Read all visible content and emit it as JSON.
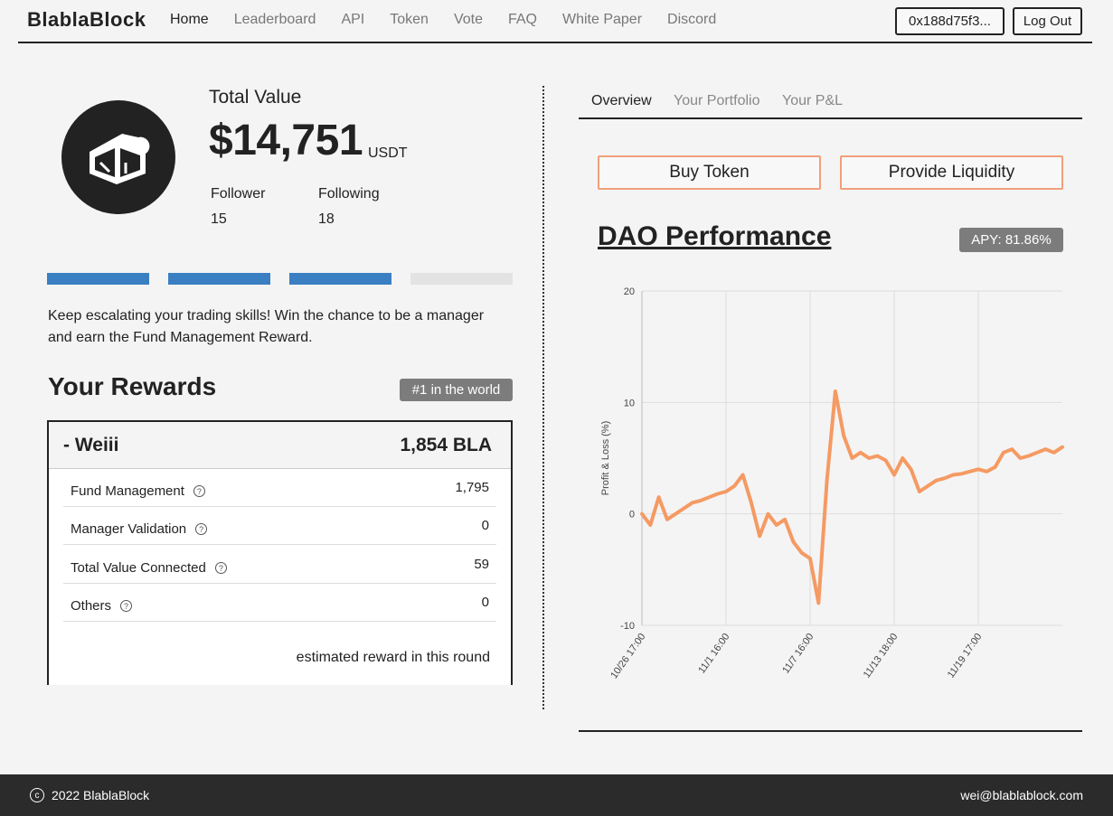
{
  "header": {
    "logo": "BlablaBlock",
    "nav": [
      "Home",
      "Leaderboard",
      "API",
      "Token",
      "Vote",
      "FAQ",
      "White Paper",
      "Discord"
    ],
    "wallet": "0x188d75f3...",
    "logout": "Log Out"
  },
  "profile": {
    "total_value_label": "Total Value",
    "total_value": "$14,751",
    "unit": "USDT",
    "follower_label": "Follower",
    "follower": "15",
    "following_label": "Following",
    "following": "18",
    "progress_filled": 3,
    "progress_total": 4
  },
  "tip": "Keep escalating your trading skills! Win the chance to be a manager and earn the Fund Management Reward.",
  "rewards": {
    "title": "Your Rewards",
    "rank": "#1 in the world",
    "name": "-  Weiii",
    "total": "1,854 BLA",
    "rows": [
      {
        "label": "Fund Management",
        "value": "1,795"
      },
      {
        "label": "Manager Validation",
        "value": "0"
      },
      {
        "label": "Total Value Connected",
        "value": "59"
      },
      {
        "label": "Others",
        "value": "0"
      }
    ],
    "note": "estimated reward in this round"
  },
  "right": {
    "tabs": [
      "Overview",
      "Your Portfolio",
      "Your P&L"
    ],
    "buy_token": "Buy Token",
    "provide_liquidity": "Provide Liquidity",
    "dao_title": "DAO Performance",
    "apy": "APY: 81.86%"
  },
  "chart_data": {
    "type": "line",
    "ylabel": "Profit & Loss (%)",
    "ylim": [
      -10,
      20
    ],
    "yticks": [
      20,
      10,
      0,
      -10
    ],
    "xticks": [
      "10/26 17:00",
      "11/1 16:00",
      "11/7 16:00",
      "11/13 18:00",
      "11/19 17:00"
    ],
    "series": [
      {
        "color": "#f59a63",
        "x": [
          0,
          1,
          2,
          3,
          4,
          5,
          6,
          7,
          8,
          9,
          10,
          11,
          12,
          13,
          14,
          15,
          16,
          17,
          18,
          19,
          20,
          21,
          22,
          23,
          24,
          25,
          26,
          27,
          28,
          29,
          30,
          31,
          32,
          33,
          34,
          35,
          36,
          37,
          38,
          39,
          40,
          41,
          42,
          43,
          44,
          45,
          46,
          47,
          48,
          49,
          50
        ],
        "values": [
          0,
          -1,
          1.5,
          -0.5,
          0,
          0.5,
          1,
          1.2,
          1.5,
          1.8,
          2,
          2.5,
          3.5,
          1,
          -2,
          0,
          -1,
          -0.5,
          -2.5,
          -3.5,
          -4,
          -8,
          3,
          11,
          7,
          5,
          5.5,
          5,
          5.2,
          4.8,
          3.5,
          5,
          4,
          2,
          2.5,
          3,
          3.2,
          3.5,
          3.6,
          3.8,
          4,
          3.8,
          4.2,
          5.5,
          5.8,
          5,
          5.2,
          5.5,
          5.8,
          5.5,
          6
        ]
      }
    ]
  },
  "footer": {
    "copyright": "2022 BlablaBlock",
    "email": "wei@blablablock.com"
  }
}
